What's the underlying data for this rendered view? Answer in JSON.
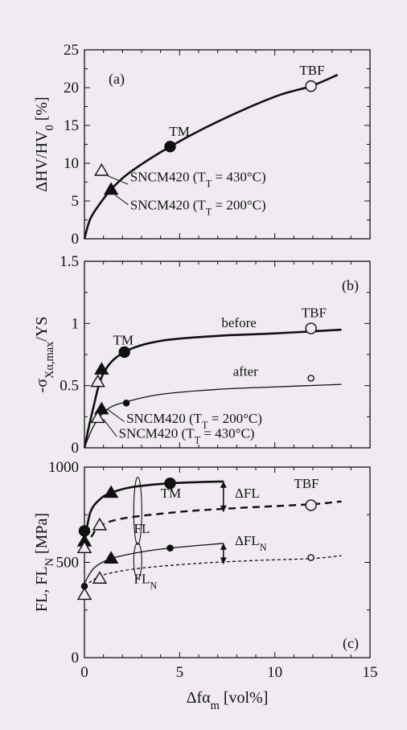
{
  "chart_data": [
    {
      "type": "scatter",
      "panel_label": "(a)",
      "ylabel": "ΔHV/HV",
      "ylabel_sub": "0",
      "ylabel_unit": " [%]",
      "xlim": [
        0,
        15
      ],
      "ylim": [
        0,
        25
      ],
      "yticks": [
        "0",
        "5",
        "10",
        "15",
        "20",
        "25"
      ],
      "series": [
        {
          "marker": "filled-circle",
          "points": [
            [
              4.5,
              12.2
            ]
          ]
        },
        {
          "marker": "open-circle",
          "points": [
            [
              11.9,
              20.2
            ]
          ]
        },
        {
          "marker": "filled-triangle",
          "points": [
            [
              1.4,
              6.5
            ]
          ]
        },
        {
          "marker": "open-triangle",
          "points": [
            [
              0.9,
              9.0
            ]
          ]
        }
      ],
      "curves": [
        {
          "style": "solid-thick",
          "points": [
            [
              0,
              0
            ],
            [
              0.3,
              2.6
            ],
            [
              0.8,
              4.6
            ],
            [
              1.5,
              6.8
            ],
            [
              2.5,
              9.0
            ],
            [
              4.5,
              12.2
            ],
            [
              7,
              15.5
            ],
            [
              10,
              18.8
            ],
            [
              11.9,
              20.2
            ],
            [
              13.3,
              21.7
            ]
          ]
        }
      ],
      "annotations": [
        {
          "text": "TM",
          "x": 4.45,
          "y": 13.6
        },
        {
          "text": "TBF",
          "x": 11.3,
          "y": 21.7
        },
        {
          "text": "SNCM420 (T",
          "sub": "T",
          "tail": " = 430°C)",
          "x": 2.4,
          "y": 7.6
        },
        {
          "text": "SNCM420 (T",
          "sub": "T",
          "tail": " = 200°C)",
          "x": 2.4,
          "y": 3.9
        }
      ]
    },
    {
      "type": "scatter",
      "panel_label": "(b)",
      "ylabel": "-σ",
      "ylabel_sub": "Xα,max",
      "ylabel_unit": "/YS",
      "xlim": [
        0,
        15
      ],
      "ylim": [
        0,
        1.5
      ],
      "yticks": [
        "0",
        "0.5",
        "1",
        "1.5"
      ],
      "series": [
        {
          "marker": "filled-circle",
          "points": [
            [
              2.1,
              0.77
            ]
          ]
        },
        {
          "marker": "open-circle",
          "points": [
            [
              11.9,
              0.96
            ]
          ]
        },
        {
          "marker": "small-filled-circle",
          "points": [
            [
              2.2,
              0.36
            ]
          ]
        },
        {
          "marker": "small-open-circle",
          "points": [
            [
              11.9,
              0.56
            ]
          ]
        },
        {
          "marker": "filled-triangle",
          "points": [
            [
              0.9,
              0.63
            ],
            [
              0.9,
              0.31
            ]
          ]
        },
        {
          "marker": "open-triangle",
          "points": [
            [
              0.7,
              0.53
            ],
            [
              0.7,
              0.24
            ]
          ]
        }
      ],
      "curves": [
        {
          "style": "solid-thick",
          "points": [
            [
              0,
              0
            ],
            [
              0.4,
              0.28
            ],
            [
              1,
              0.6
            ],
            [
              2.1,
              0.77
            ],
            [
              4,
              0.86
            ],
            [
              7,
              0.9
            ],
            [
              10,
              0.92
            ],
            [
              13.5,
              0.95
            ]
          ]
        },
        {
          "style": "solid-thin",
          "points": [
            [
              0,
              0
            ],
            [
              0.5,
              0.18
            ],
            [
              1.2,
              0.31
            ],
            [
              2.2,
              0.37
            ],
            [
              4,
              0.43
            ],
            [
              7,
              0.47
            ],
            [
              10,
              0.49
            ],
            [
              13.5,
              0.51
            ]
          ]
        }
      ],
      "annotations": [
        {
          "text": "TM",
          "x": 1.5,
          "y": 0.83
        },
        {
          "text": "TBF",
          "x": 11.4,
          "y": 1.05
        },
        {
          "text": "before",
          "x": 7.2,
          "y": 0.97
        },
        {
          "text": "after",
          "x": 7.8,
          "y": 0.58
        },
        {
          "text": "SNCM420 (T",
          "sub": "T",
          "tail": " = 200°C)",
          "x": 2.2,
          "y": 0.2
        },
        {
          "text": "SNCM420 (T",
          "sub": "T",
          "tail": " = 430°C)",
          "x": 1.8,
          "y": 0.08
        }
      ]
    },
    {
      "type": "scatter",
      "panel_label": "(c)",
      "ylabel": "FL, FL",
      "ylabel_sub": "N",
      "ylabel_unit": " [MPa]",
      "xlabel": "Δfα",
      "xlabel_sub": "m",
      "xlabel_unit": " [vol%]",
      "xlim": [
        0,
        15
      ],
      "ylim": [
        0,
        1000
      ],
      "yticks": [
        "0",
        "500",
        "1000"
      ],
      "xticks": [
        "0",
        "5",
        "10",
        "15"
      ],
      "series": [
        {
          "marker": "filled-circle",
          "points": [
            [
              0,
              665
            ],
            [
              4.5,
              915
            ]
          ]
        },
        {
          "marker": "open-circle",
          "points": [
            [
              11.9,
              800
            ]
          ]
        },
        {
          "marker": "small-filled-circle",
          "points": [
            [
              4.5,
              575
            ],
            [
              0,
              375
            ]
          ]
        },
        {
          "marker": "small-open-circle",
          "points": [
            [
              11.9,
              525
            ]
          ]
        },
        {
          "marker": "filled-triangle",
          "points": [
            [
              1.4,
              865
            ],
            [
              1.4,
              520
            ],
            [
              0,
              610
            ]
          ]
        },
        {
          "marker": "open-triangle",
          "points": [
            [
              0.8,
              695
            ],
            [
              0,
              575
            ],
            [
              0.8,
              415
            ],
            [
              0,
              330
            ]
          ]
        }
      ],
      "curves": [
        {
          "style": "solid-thick",
          "points": [
            [
              0,
              600
            ],
            [
              0.3,
              760
            ],
            [
              0.8,
              830
            ],
            [
              1.4,
              865
            ],
            [
              2.5,
              895
            ],
            [
              4.5,
              915
            ],
            [
              7.3,
              925
            ]
          ]
        },
        {
          "style": "dashed-thick",
          "points": [
            [
              0,
              580
            ],
            [
              0.4,
              640
            ],
            [
              0.8,
              690
            ],
            [
              2,
              730
            ],
            [
              5,
              765
            ],
            [
              8,
              785
            ],
            [
              11.9,
              805
            ],
            [
              13.5,
              820
            ]
          ]
        },
        {
          "style": "solid-thin",
          "points": [
            [
              0,
              390
            ],
            [
              0.5,
              470
            ],
            [
              1.4,
              520
            ],
            [
              3,
              555
            ],
            [
              4.5,
              575
            ],
            [
              7.3,
              600
            ]
          ]
        },
        {
          "style": "dashed-thin",
          "points": [
            [
              0,
              375
            ],
            [
              0.5,
              410
            ],
            [
              1.2,
              440
            ],
            [
              3,
              470
            ],
            [
              6,
              495
            ],
            [
              9,
              510
            ],
            [
              11.9,
              520
            ],
            [
              13.5,
              535
            ]
          ]
        }
      ],
      "annotations": [
        {
          "text": "TM",
          "x": 4.0,
          "y": 840
        },
        {
          "text": "TBF",
          "x": 11.0,
          "y": 890
        },
        {
          "text": "ΔFL",
          "x": 7.9,
          "y": 840
        },
        {
          "text": "FL",
          "x": 2.6,
          "y": 655
        },
        {
          "text": "ΔFL",
          "sub": "N",
          "x": 7.9,
          "y": 590
        },
        {
          "text": "FL",
          "sub": "N",
          "x": 2.6,
          "y": 390
        }
      ]
    }
  ]
}
